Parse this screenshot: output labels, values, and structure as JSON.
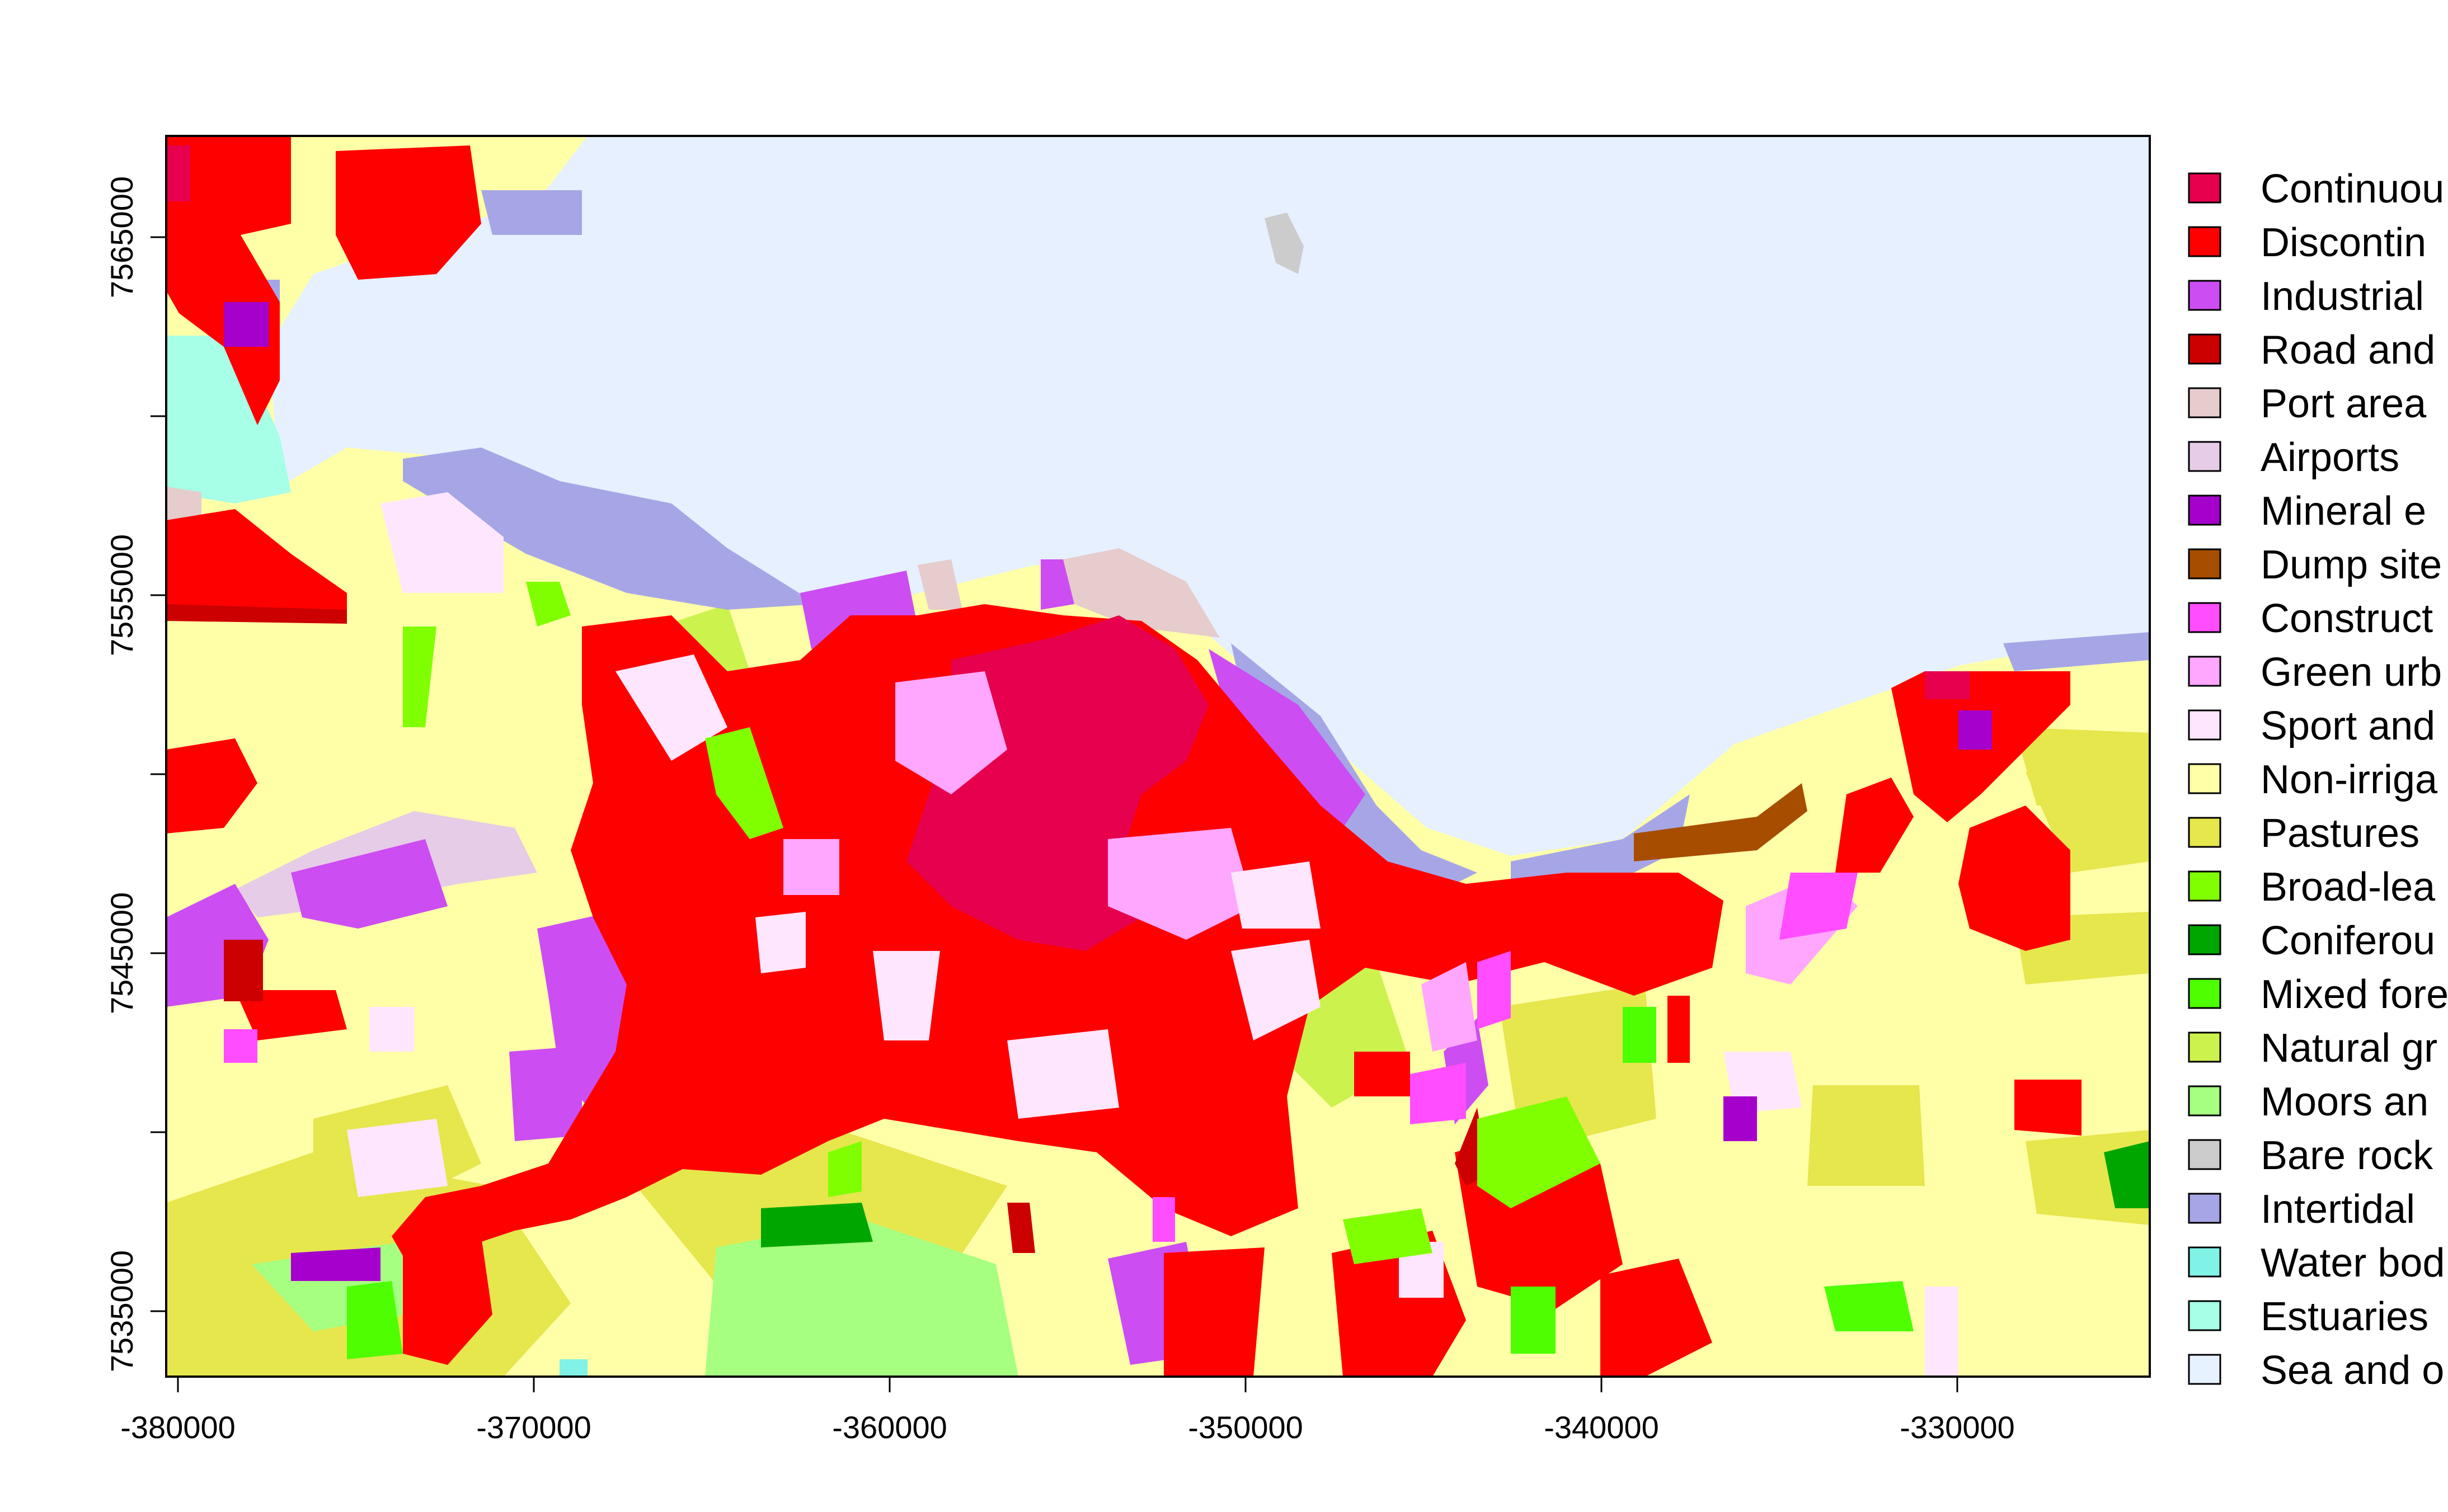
{
  "map": {
    "sea_color": "#E6F0FF",
    "x_ticks": [
      "-380000",
      "-370000",
      "-360000",
      "-350000",
      "-340000",
      "-330000"
    ],
    "y_ticks": [
      "7565000",
      "7555000",
      "7545000",
      "7535000"
    ]
  },
  "legend": [
    {
      "label": "Continuou",
      "color": "#E6004D"
    },
    {
      "label": "Discontin",
      "color": "#FF0000"
    },
    {
      "label": "Industrial",
      "color": "#CC4DF2"
    },
    {
      "label": "Road and",
      "color": "#CC0000"
    },
    {
      "label": "Port area",
      "color": "#E6CCCC"
    },
    {
      "label": "Airports",
      "color": "#E6CCE6"
    },
    {
      "label": "Mineral e",
      "color": "#A600CC"
    },
    {
      "label": "Dump site",
      "color": "#A64D00"
    },
    {
      "label": "Construct",
      "color": "#FF4DFF"
    },
    {
      "label": "Green urb",
      "color": "#FFA6FF"
    },
    {
      "label": "Sport and",
      "color": "#FFE6FF"
    },
    {
      "label": "Non-irriga",
      "color": "#FFFFA8"
    },
    {
      "label": "Pastures",
      "color": "#E6E64D"
    },
    {
      "label": "Broad-lea",
      "color": "#80FF00"
    },
    {
      "label": "Coniferou",
      "color": "#00A600"
    },
    {
      "label": "Mixed fore",
      "color": "#4DFF00"
    },
    {
      "label": "Natural gr",
      "color": "#CCF24D"
    },
    {
      "label": "Moors an",
      "color": "#A6FF80"
    },
    {
      "label": "Bare rock",
      "color": "#CCCCCC"
    },
    {
      "label": "Intertidal",
      "color": "#A6A6E6"
    },
    {
      "label": "Water bod",
      "color": "#80F2E6"
    },
    {
      "label": "Estuaries",
      "color": "#A6FFE6"
    },
    {
      "label": "Sea and o",
      "color": "#E6F2FF"
    }
  ]
}
